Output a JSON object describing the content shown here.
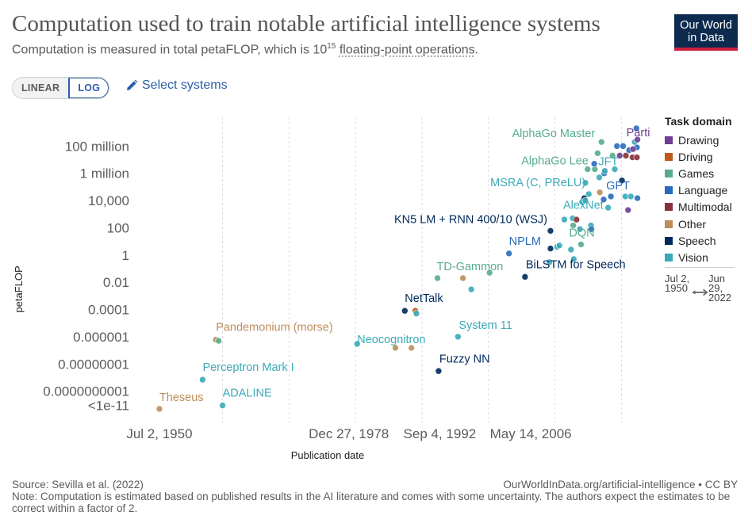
{
  "title": "Computation used to train notable artificial intelligence systems",
  "subtitle": {
    "prefix": "Computation is measured in total petaFLOP, which is 10",
    "exponent": "15",
    "link_text": "floating-point operations",
    "suffix": "."
  },
  "logo": {
    "line1": "Our World",
    "line2": "in Data"
  },
  "controls": {
    "linear_label": "LINEAR",
    "log_label": "LOG",
    "active_scale": "LOG",
    "select_label": "Select systems",
    "select_icon": "pencil-icon"
  },
  "legend": {
    "title": "Task domain",
    "items": [
      {
        "label": "Drawing",
        "color": "#6d3e91"
      },
      {
        "label": "Driving",
        "color": "#c05917"
      },
      {
        "label": "Games",
        "color": "#58ac8c"
      },
      {
        "label": "Language",
        "color": "#286bbb"
      },
      {
        "label": "Multimodal",
        "color": "#883039"
      },
      {
        "label": "Other",
        "color": "#bc8e5a"
      },
      {
        "label": "Speech",
        "color": "#00295b"
      },
      {
        "label": "Vision",
        "color": "#3aaab8"
      }
    ]
  },
  "timeline": {
    "start": "Jul 2, 1950",
    "end": "Jun 29, 2022",
    "arrow_icon": "range-arrow-icon"
  },
  "footer": {
    "source": "Source: Sevilla et al. (2022)",
    "credit": "OurWorldInData.org/artificial-intelligence • CC BY",
    "note": "Note: Computation is estimated based on published results in the AI literature and comes with some uncertainty. The authors expect the estimates to be correct within a factor of 2."
  },
  "chart_data": {
    "type": "scatter",
    "xlabel": "Publication date",
    "ylabel": "petaFLOP",
    "y_scale": "log",
    "ylim": [
      1e-12,
      10000000000.0
    ],
    "xlim": [
      "1948-01-01",
      "2023-06-01"
    ],
    "x_ticks": [
      "Jul 2, 1950",
      "Dec 27, 1978",
      "Sep 4, 1992",
      "May 14, 2006"
    ],
    "y_ticks": [
      "100 million",
      "1 million",
      "10,000",
      "100",
      "1",
      "0.01",
      "0.0001",
      "0.000001",
      "0.00000001",
      "0.0000000001",
      "<1e-11"
    ],
    "grid": "vertical",
    "legend_position": "right",
    "points": [
      {
        "label": "Theseus",
        "date": "1950-07-02",
        "y": 5e-12,
        "domain": "Other"
      },
      {
        "label": "Perceptron Mark I",
        "date": "1957-01-01",
        "y": 7e-10,
        "domain": "Vision"
      },
      {
        "label": "ADALINE",
        "date": "1960-01-01",
        "y": 9e-12,
        "domain": "Vision"
      },
      {
        "label": "Pandemonium (morse)",
        "date": "1959-01-01",
        "y": 6e-07,
        "domain": "Other"
      },
      {
        "label": "",
        "date": "1959-06-01",
        "y": 5e-07,
        "domain": "Games"
      },
      {
        "label": "Neocognitron",
        "date": "1980-04-01",
        "y": 3e-07,
        "domain": "Vision"
      },
      {
        "label": "",
        "date": "1986-01-01",
        "y": 1.5e-07,
        "domain": "Other"
      },
      {
        "label": "",
        "date": "1988-06-01",
        "y": 1.5e-07,
        "domain": "Other"
      },
      {
        "label": "NetTalk",
        "date": "1987-06-01",
        "y": 8e-05,
        "domain": "Speech"
      },
      {
        "label": "",
        "date": "1989-01-01",
        "y": 8e-05,
        "domain": "Driving"
      },
      {
        "label": "",
        "date": "1989-03-01",
        "y": 5e-05,
        "domain": "Vision"
      },
      {
        "label": "Fuzzy NN",
        "date": "1992-07-01",
        "y": 3e-09,
        "domain": "Speech"
      },
      {
        "label": "System 11",
        "date": "1995-06-01",
        "y": 1e-06,
        "domain": "Vision"
      },
      {
        "label": "TD-Gammon",
        "date": "1992-05-01",
        "y": 0.02,
        "domain": "Games"
      },
      {
        "label": "",
        "date": "1996-03-01",
        "y": 0.02,
        "domain": "Other"
      },
      {
        "label": "",
        "date": "1997-06-01",
        "y": 0.003,
        "domain": "Vision"
      },
      {
        "label": "",
        "date": "2000-03-01",
        "y": 0.05,
        "domain": "Games"
      },
      {
        "label": "NPLM",
        "date": "2003-02-01",
        "y": 1.3,
        "domain": "Language"
      },
      {
        "label": "BiLSTM for Speech",
        "date": "2005-07-01",
        "y": 0.025,
        "domain": "Speech"
      },
      {
        "label": "KN5 LM + RNN 400/10 (WSJ)",
        "date": "2009-05-01",
        "y": 60,
        "domain": "Speech"
      },
      {
        "label": "",
        "date": "2009-05-01",
        "y": 3,
        "domain": "Speech"
      },
      {
        "label": "",
        "date": "2009-03-01",
        "y": 0.3,
        "domain": "Vision"
      },
      {
        "label": "",
        "date": "2010-05-01",
        "y": 4,
        "domain": "Vision"
      },
      {
        "label": "",
        "date": "2010-09-01",
        "y": 5,
        "domain": "Vision"
      },
      {
        "label": "DQN",
        "date": "2013-12-01",
        "y": 6,
        "domain": "Games"
      },
      {
        "label": "",
        "date": "2012-06-01",
        "y": 2.5,
        "domain": "Vision"
      },
      {
        "label": "",
        "date": "2012-11-01",
        "y": 0.5,
        "domain": "Vision"
      },
      {
        "label": "AlexNet",
        "date": "2012-09-01",
        "y": 500,
        "domain": "Vision"
      },
      {
        "label": "",
        "date": "2011-06-01",
        "y": 400,
        "domain": "Vision"
      },
      {
        "label": "",
        "date": "2012-10-01",
        "y": 150,
        "domain": "Games"
      },
      {
        "label": "",
        "date": "2013-04-01",
        "y": 400,
        "domain": "Multimodal"
      },
      {
        "label": "",
        "date": "2013-10-01",
        "y": 80,
        "domain": "Vision"
      },
      {
        "label": "",
        "date": "2015-06-01",
        "y": 150,
        "domain": "Vision"
      },
      {
        "label": "",
        "date": "2015-07-01",
        "y": 80,
        "domain": "Language"
      },
      {
        "label": "",
        "date": "2014-02-01",
        "y": 8000,
        "domain": "Vision"
      },
      {
        "label": "",
        "date": "2014-06-01",
        "y": 15000,
        "domain": "Speech"
      },
      {
        "label": "",
        "date": "2014-08-01",
        "y": 10000,
        "domain": "Vision"
      },
      {
        "label": "MSRA (C, PReLU)",
        "date": "2015-02-01",
        "y": 30000,
        "domain": "Vision"
      },
      {
        "label": "AlphaGo Lee",
        "date": "2016-01-01",
        "y": 2000000,
        "domain": "Games"
      },
      {
        "label": "AlphaGo Master",
        "date": "2017-01-01",
        "y": 200000000,
        "domain": "Games"
      },
      {
        "label": "",
        "date": "2014-12-01",
        "y": 2000000,
        "domain": "Games"
      },
      {
        "label": "",
        "date": "2014-08-01",
        "y": 200000,
        "domain": "Vision"
      },
      {
        "label": "",
        "date": "2015-12-01",
        "y": 5000000,
        "domain": "Language"
      },
      {
        "label": "",
        "date": "2016-06-01",
        "y": 30000000,
        "domain": "Games"
      },
      {
        "label": "",
        "date": "2016-09-01",
        "y": 500000,
        "domain": "Vision"
      },
      {
        "label": "",
        "date": "2017-06-01",
        "y": 1000000,
        "domain": "Language"
      },
      {
        "label": "",
        "date": "2016-10-01",
        "y": 40000,
        "domain": "Other"
      },
      {
        "label": "",
        "date": "2017-05-01",
        "y": 12000,
        "domain": "Language"
      },
      {
        "label": "JFT",
        "date": "2017-07-01",
        "y": 1500000,
        "domain": "Vision"
      },
      {
        "label": "GPT",
        "date": "2018-06-01",
        "y": 20000,
        "domain": "Language"
      },
      {
        "label": "",
        "date": "2018-01-01",
        "y": 3000,
        "domain": "Vision"
      },
      {
        "label": "",
        "date": "2018-09-01",
        "y": 20000000,
        "domain": "Games"
      },
      {
        "label": "",
        "date": "2019-01-01",
        "y": 2000000,
        "domain": "Vision"
      },
      {
        "label": "",
        "date": "2019-05-01",
        "y": 100000000,
        "domain": "Language"
      },
      {
        "label": "",
        "date": "2019-10-01",
        "y": 20000000,
        "domain": "Drawing"
      },
      {
        "label": "",
        "date": "2020-02-01",
        "y": 300000,
        "domain": "Speech"
      },
      {
        "label": "",
        "date": "2020-04-01",
        "y": 100000000,
        "domain": "Language"
      },
      {
        "label": "",
        "date": "2020-08-01",
        "y": 20000,
        "domain": "Vision"
      },
      {
        "label": "",
        "date": "2020-09-01",
        "y": 20000000,
        "domain": "Multimodal"
      },
      {
        "label": "",
        "date": "2021-01-01",
        "y": 2000,
        "domain": "Drawing"
      },
      {
        "label": "",
        "date": "2021-03-01",
        "y": 50000000,
        "domain": "Language"
      },
      {
        "label": "",
        "date": "2021-06-01",
        "y": 20000,
        "domain": "Vision"
      },
      {
        "label": "",
        "date": "2021-09-01",
        "y": 15000000,
        "domain": "Multimodal"
      },
      {
        "label": "",
        "date": "2022-01-01",
        "y": 200000000,
        "domain": "Vision"
      },
      {
        "label": "Parti",
        "date": "2022-06-01",
        "y": 300000000,
        "domain": "Drawing"
      },
      {
        "label": "",
        "date": "2022-04-01",
        "y": 2000000000,
        "domain": "Language"
      },
      {
        "label": "",
        "date": "2022-05-01",
        "y": 80000000,
        "domain": "Language"
      },
      {
        "label": "",
        "date": "2022-05-01",
        "y": 15000000,
        "domain": "Multimodal"
      },
      {
        "label": "",
        "date": "2022-06-01",
        "y": 15000,
        "domain": "Language"
      },
      {
        "label": "",
        "date": "2021-10-01",
        "y": 60000000,
        "domain": "Drawing"
      }
    ]
  }
}
